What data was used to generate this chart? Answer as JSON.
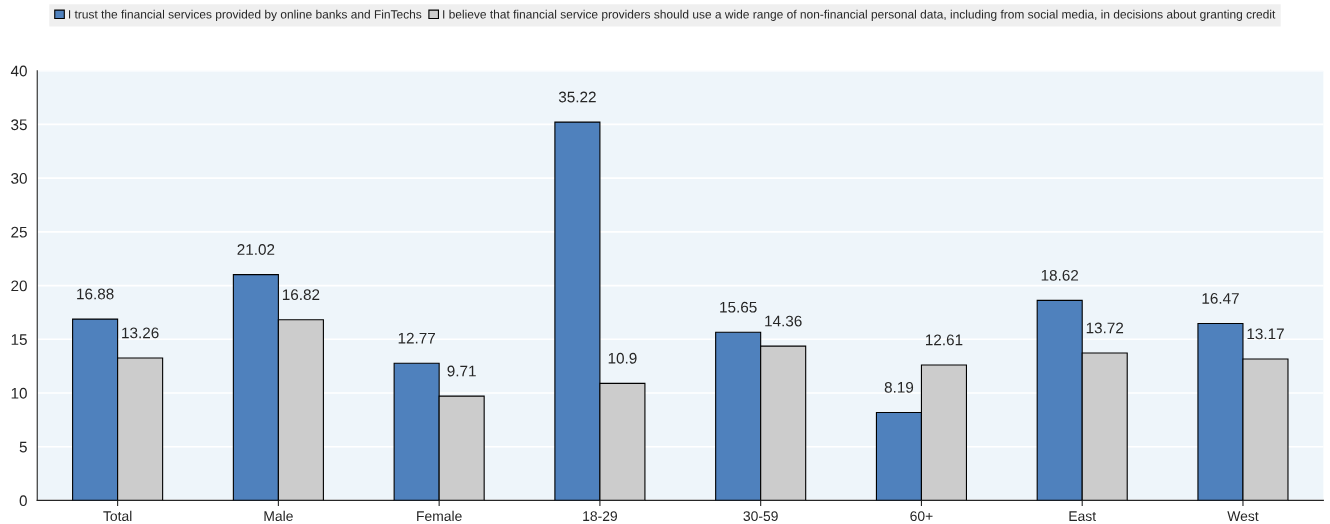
{
  "chart_data": {
    "type": "bar",
    "categories": [
      "Total",
      "Male",
      "Female",
      "18-29",
      "30-59",
      "60+",
      "East",
      "West"
    ],
    "series": [
      {
        "name": "I trust the financial services provided by online banks and FinTechs",
        "color": "#4f81bd",
        "values": [
          16.88,
          21.02,
          12.77,
          35.22,
          15.65,
          8.19,
          18.62,
          16.47
        ]
      },
      {
        "name": "I believe that financial service providers should use a wide range of non-financial personal data, including from social media, in decisions about granting credit",
        "color": "#cccccc",
        "values": [
          13.26,
          16.82,
          9.71,
          10.9,
          14.36,
          12.61,
          13.72,
          13.17
        ]
      }
    ],
    "ylim": [
      0,
      40
    ],
    "yticks": [
      0,
      5,
      10,
      15,
      20,
      25,
      30,
      35,
      40
    ],
    "grid": "y",
    "legend": "top",
    "data_labels": true
  }
}
